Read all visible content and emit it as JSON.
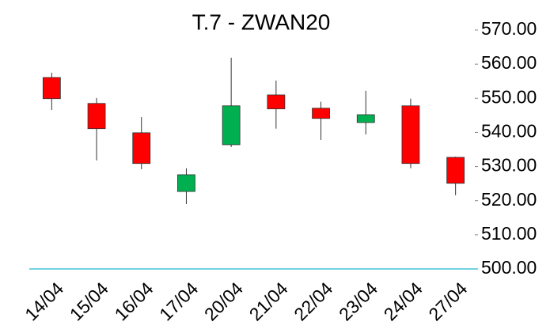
{
  "chart_data": {
    "type": "candlestick",
    "title": "T.7 - ZWAN20",
    "categories": [
      "14/04",
      "15/04",
      "16/04",
      "17/04",
      "20/04",
      "21/04",
      "22/04",
      "23/04",
      "24/04",
      "27/04"
    ],
    "open": [
      556.1,
      548.5,
      539.9,
      522.7,
      536.4,
      551.0,
      547.1,
      542.9,
      547.8,
      532.7
    ],
    "high": [
      557.5,
      550.1,
      544.5,
      529.5,
      561.9,
      555.2,
      549.0,
      552.2,
      549.9,
      532.9
    ],
    "low": [
      546.6,
      531.8,
      529.2,
      519.0,
      535.7,
      541.1,
      537.8,
      539.4,
      529.5,
      521.6
    ],
    "close": [
      549.9,
      541.1,
      530.9,
      527.6,
      547.8,
      546.9,
      544.1,
      545.2,
      530.9,
      525.1
    ],
    "up_color": "#00b050",
    "down_color": "#ff0000",
    "axis_color": "#22b8cf",
    "ylim": [
      500,
      570
    ],
    "yticks": [
      {
        "value": 500,
        "label": "500.00"
      },
      {
        "value": 510,
        "label": "510.00"
      },
      {
        "value": 520,
        "label": "520.00"
      },
      {
        "value": 530,
        "label": "530.00"
      },
      {
        "value": 540,
        "label": "540.00"
      },
      {
        "value": 550,
        "label": "550.00"
      },
      {
        "value": 560,
        "label": "560.00"
      },
      {
        "value": 570,
        "label": "570.00"
      }
    ]
  }
}
